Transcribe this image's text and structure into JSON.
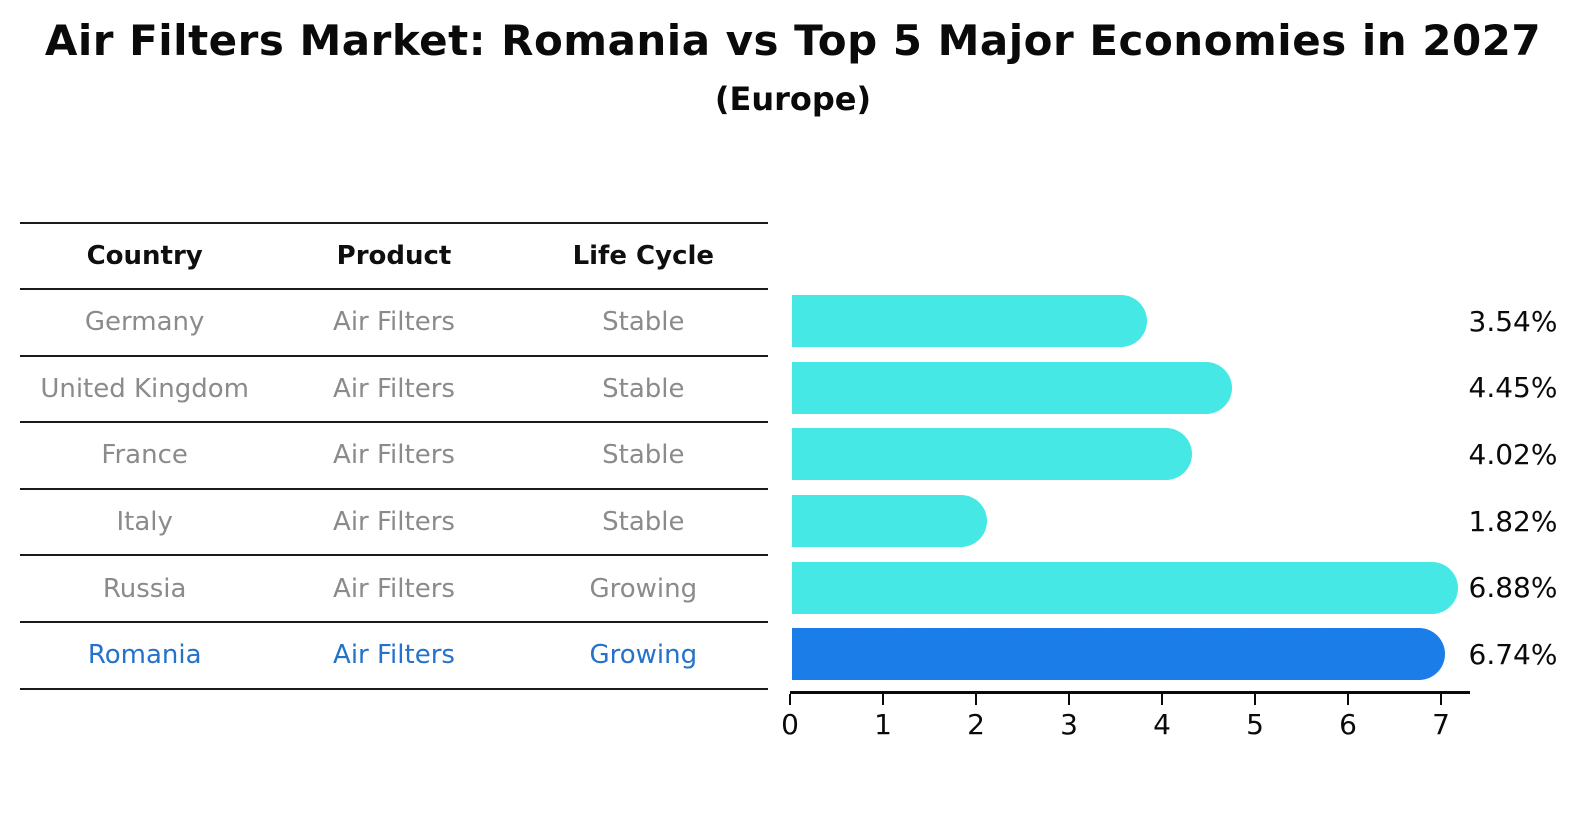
{
  "title": "Air Filters Market: Romania vs Top 5 Major Economies in 2027",
  "subtitle": "(Europe)",
  "table": {
    "headers": [
      "Country",
      "Product",
      "Life Cycle"
    ]
  },
  "chart_data": {
    "type": "bar",
    "orientation": "horizontal",
    "title": "Air Filters Market: Romania vs Top 5 Major Economies in 2027",
    "subtitle": "(Europe)",
    "categories": [
      "Germany",
      "United Kingdom",
      "France",
      "Italy",
      "Russia",
      "Romania"
    ],
    "values": [
      3.54,
      4.45,
      4.02,
      1.82,
      6.88,
      6.74
    ],
    "value_labels": [
      "3.54%",
      "4.45%",
      "4.02%",
      "1.82%",
      "6.88%",
      "6.74%"
    ],
    "rows": [
      {
        "country": "Germany",
        "product": "Air Filters",
        "life_cycle": "Stable",
        "value": 3.54,
        "label": "3.54%",
        "highlight": false
      },
      {
        "country": "United Kingdom",
        "product": "Air Filters",
        "life_cycle": "Stable",
        "value": 4.45,
        "label": "4.45%",
        "highlight": false
      },
      {
        "country": "France",
        "product": "Air Filters",
        "life_cycle": "Stable",
        "value": 4.02,
        "label": "4.02%",
        "highlight": false
      },
      {
        "country": "Italy",
        "product": "Air Filters",
        "life_cycle": "Stable",
        "value": 1.82,
        "label": "1.82%",
        "highlight": false
      },
      {
        "country": "Russia",
        "product": "Air Filters",
        "life_cycle": "Growing",
        "value": 6.88,
        "label": "6.88%",
        "highlight": false
      },
      {
        "country": "Romania",
        "product": "Air Filters",
        "life_cycle": "Growing",
        "value": 6.74,
        "label": "6.74%",
        "highlight": true
      }
    ],
    "xlim": [
      0,
      7.3
    ],
    "xticks": [
      0,
      1,
      2,
      3,
      4,
      5,
      6,
      7
    ],
    "grid": false,
    "legend": "none",
    "bar_color": "#45E8E4",
    "highlight_bar_color": "#1B7DE8",
    "highlight_text_color": "#2472CC",
    "table_text_color": "#8B8B8B"
  }
}
